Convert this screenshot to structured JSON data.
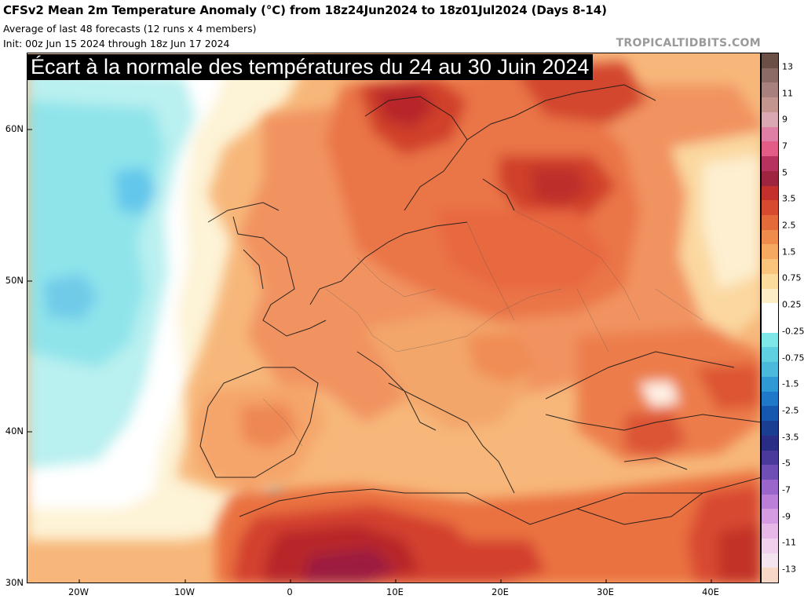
{
  "header": {
    "title": "CFSv2 Mean 2m Temperature Anomaly (°C) from 18z24Jun2024 to 18z01Jul2024 (Days 8-14)",
    "subtitle_1": "Average of last 48 forecasts (12 runs x 4 members)",
    "subtitle_2": "Init: 00z Jun 15 2024 through 18z Jun 17 2024",
    "credit": "TROPICALTIDBITS.COM"
  },
  "overlay_caption": "Écart à la normale des températures du 24 au 30 Juin 2024",
  "map": {
    "lat_labels": [
      "60N",
      "50N",
      "40N",
      "30N"
    ],
    "lon_labels": [
      "20W",
      "10W",
      "0",
      "10E",
      "20E",
      "30E",
      "40E"
    ]
  },
  "colorbar": {
    "labels": [
      "13",
      "11",
      "9",
      "7",
      "5",
      "3.5",
      "2.5",
      "1.5",
      "0.75",
      "0.25",
      "-0.25",
      "-0.75",
      "-1.5",
      "-2.5",
      "-3.5",
      "-5",
      "-7",
      "-9",
      "-11",
      "-13"
    ],
    "colors": [
      "#6b5048",
      "#8c6a66",
      "#a8807d",
      "#c2968f",
      "#d9a8b2",
      "#e07fa5",
      "#e35c88",
      "#b8325f",
      "#9e2540",
      "#c5302c",
      "#d84a30",
      "#e56a3a",
      "#f08c4b",
      "#f6aa60",
      "#fac47d",
      "#fcdc9c",
      "#fdedc5",
      "#ffffff",
      "#ffffff",
      "#7fe7e7",
      "#5fd0e0",
      "#49b9dc",
      "#2f99d6",
      "#1f79c8",
      "#1558b0",
      "#1a3e92",
      "#2a2d86",
      "#4a3a9c",
      "#6f4fb6",
      "#9a66cc",
      "#bb7fda",
      "#d49ae2",
      "#e6b8e8",
      "#efd1ee",
      "#f4e4ee",
      "#f7d7c8"
    ]
  }
}
